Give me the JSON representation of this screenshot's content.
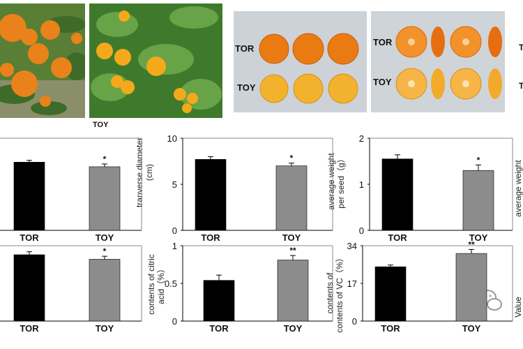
{
  "colors": {
    "tor": "#000000",
    "toy": "#8c8c8c",
    "orange": "#f28a1a",
    "leaf": "#5d8a3a"
  },
  "photos": {
    "tree_toy_label": "TOY",
    "whole_labels": [
      "TOR",
      "TOY"
    ],
    "cut_labels": [
      "TOR",
      "TOY"
    ],
    "right_edge_labels": [
      "T",
      "T"
    ]
  },
  "chart_data": [
    {
      "type": "bar",
      "panel": "r1c1",
      "categories": [
        "TOR",
        "TOY"
      ],
      "values": [
        7.4,
        6.9
      ],
      "errors": [
        0.2,
        0.3
      ],
      "significance": [
        "",
        "*"
      ],
      "ylim": [
        0,
        10
      ]
    },
    {
      "type": "bar",
      "panel": "r1c2",
      "categories": [
        "TOR",
        "TOY"
      ],
      "values": [
        7.7,
        7.0
      ],
      "errors": [
        0.3,
        0.3
      ],
      "significance": [
        "",
        "*"
      ],
      "ylim": [
        0,
        10
      ],
      "yticks": [
        "0",
        "5",
        "10"
      ],
      "ylabel_lines": [
        "tranverse diameter",
        "(cm)"
      ]
    },
    {
      "type": "bar",
      "panel": "r1c3",
      "categories": [
        "TOR",
        "TOY"
      ],
      "values": [
        1.55,
        1.3
      ],
      "errors": [
        0.09,
        0.12
      ],
      "significance": [
        "",
        "*"
      ],
      "ylim": [
        0,
        2
      ],
      "yticks": [
        "0",
        "1",
        "2"
      ],
      "ylabel_lines": [
        "average weight",
        "per seed（g）"
      ],
      "right_cut_label": "average weight"
    },
    {
      "type": "bar",
      "panel": "r2c1",
      "categories": [
        "TOR",
        "TOY"
      ],
      "values": [
        0.88,
        0.82
      ],
      "errors": [
        0.04,
        0.04
      ],
      "significance": [
        "",
        "*"
      ],
      "ylim": [
        0,
        1
      ]
    },
    {
      "type": "bar",
      "panel": "r2c2",
      "categories": [
        "TOR",
        "TOY"
      ],
      "values": [
        0.54,
        0.81
      ],
      "errors": [
        0.07,
        0.06
      ],
      "significance": [
        "",
        "**"
      ],
      "ylim": [
        0,
        1
      ],
      "yticks": [
        "0",
        "0.5",
        "1"
      ],
      "ylabel_lines": [
        "contents of citric",
        "acid（%）"
      ]
    },
    {
      "type": "bar",
      "panel": "r2c3",
      "categories": [
        "TOR",
        "TOY"
      ],
      "values": [
        24.5,
        30.5
      ],
      "errors": [
        0.8,
        1.8
      ],
      "significance": [
        "",
        "**"
      ],
      "ylim": [
        0,
        34
      ],
      "yticks": [
        "0",
        "17",
        "34"
      ],
      "ylabel_lines": [
        "contents of",
        "contents of  VC（%）"
      ],
      "right_cut_label": "Value"
    }
  ]
}
